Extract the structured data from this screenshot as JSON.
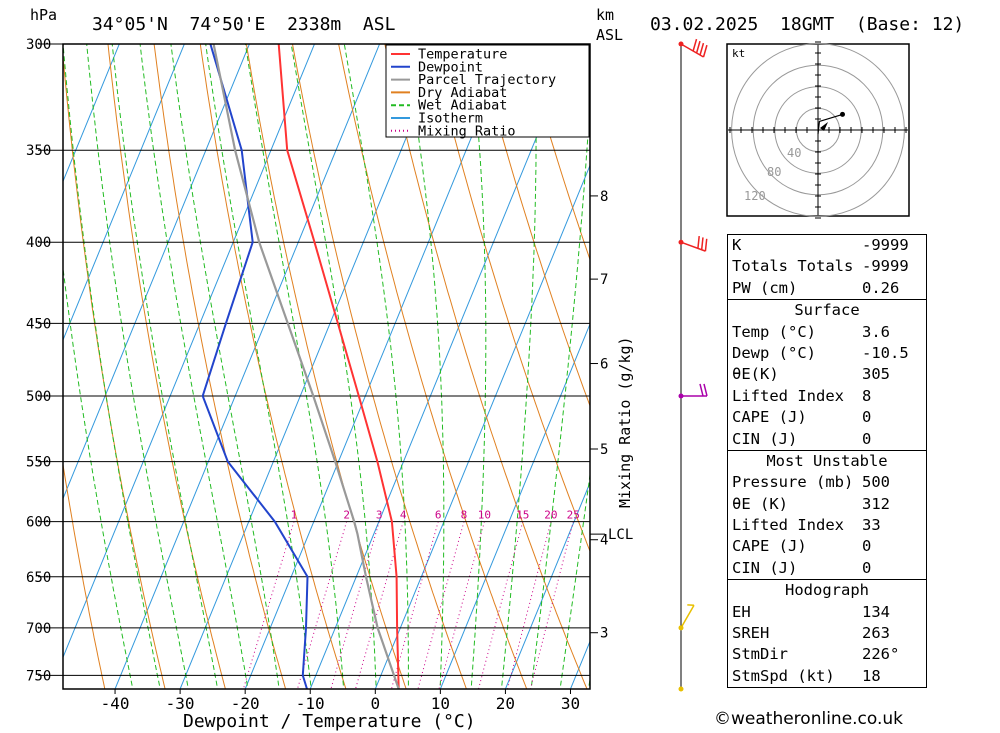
{
  "header": {
    "pressure_unit": "hPa",
    "location": "34°05'N  74°50'E  2338m  ASL",
    "height_unit_km": "km",
    "height_unit_asl": "ASL",
    "datetime": "03.02.2025  18GMT  (Base: 12)"
  },
  "footer": {
    "credit": "weatheronline.co.uk",
    "copyright_symbol": "©"
  },
  "colors": {
    "temperature": "#ff3333",
    "dewpoint": "#2244cc",
    "parcel": "#999999",
    "dry_adiabat": "#e08020",
    "wet_adiabat": "#22bb22",
    "isotherm": "#3399dd",
    "mixing_ratio": "#cc0088",
    "wind_top": "#ee2222",
    "wind_mid": "#aa00aa",
    "wind_low": "#e8c000"
  },
  "chart_data": {
    "type": "line",
    "title": "34°05'N  74°50'E  2338m  ASL",
    "xlabel": "Dewpoint / Temperature (°C)",
    "ylabel": "hPa",
    "y2label": "Mixing Ratio (g/kg)",
    "xlim": [
      -48,
      33
    ],
    "ylim": [
      765,
      300
    ],
    "yscale": "log",
    "skew_deg_per_decade": 100,
    "x_ticks": [
      -40,
      -30,
      -20,
      -10,
      0,
      10,
      20,
      30
    ],
    "x_tick_labels": [
      "-40",
      "-30",
      "-20",
      "-10",
      "0",
      "10",
      "20",
      "30"
    ],
    "pressure_levels": [
      300,
      350,
      400,
      450,
      500,
      550,
      600,
      650,
      700,
      750
    ],
    "pressure_labels": [
      "300",
      "350",
      "400",
      "450",
      "500",
      "550",
      "600",
      "650",
      "700",
      "750"
    ],
    "km_ticks": [
      {
        "label": "8",
        "p": 374
      },
      {
        "label": "7",
        "p": 422
      },
      {
        "label": "6",
        "p": 477
      },
      {
        "label": "5",
        "p": 540
      },
      {
        "label": "4",
        "p": 616
      },
      {
        "label": "3",
        "p": 705
      }
    ],
    "lcl": {
      "label": "LCL",
      "p": 611
    },
    "mixing_ratios": [
      1,
      2,
      3,
      4,
      6,
      8,
      10,
      15,
      20,
      25
    ],
    "mixing_ratio_labels": [
      "1",
      "2",
      "3",
      "4",
      "6",
      "8",
      "10",
      "15",
      "20",
      "25"
    ],
    "grid": true,
    "legend_position": "top-right",
    "legend": [
      "Temperature",
      "Dewpoint",
      "Parcel Trajectory",
      "Dry Adiabat",
      "Wet Adiabat",
      "Isotherm",
      "Mixing Ratio"
    ],
    "series": [
      {
        "name": "Temperature",
        "p": [
          765,
          700,
          650,
          600,
          550,
          500,
          450,
          400,
          350,
          300
        ],
        "t": [
          3.6,
          -0.5,
          -3.8,
          -8.0,
          -14.0,
          -21.0,
          -28.8,
          -37.5,
          -47.5,
          -55.5
        ]
      },
      {
        "name": "Dewpoint",
        "p": [
          765,
          750,
          700,
          650,
          600,
          550,
          500,
          450,
          400,
          350,
          300
        ],
        "t": [
          -10.5,
          -12,
          -14.5,
          -17.5,
          -26.0,
          -37.0,
          -45.0,
          -46.0,
          -47.0,
          -54.5,
          -66.0
        ]
      },
      {
        "name": "Parcel Trajectory",
        "p": [
          765,
          700,
          650,
          611,
          600,
          550,
          500,
          450,
          400,
          350,
          300
        ],
        "t": [
          3.6,
          -3.5,
          -8.5,
          -12.5,
          -13.8,
          -20.5,
          -28.0,
          -36.5,
          -46.0,
          -55.5,
          -65.5
        ]
      }
    ]
  },
  "winds": [
    {
      "p": 300,
      "dir": 240,
      "kt": 40,
      "color": "#ee2222"
    },
    {
      "p": 400,
      "dir": 250,
      "kt": 30,
      "color": "#ee2222"
    },
    {
      "p": 500,
      "dir": 270,
      "kt": 20,
      "color": "#aa00aa"
    },
    {
      "p": 700,
      "dir": 330,
      "kt": 5,
      "color": "#e8c000"
    },
    {
      "p": 765,
      "dir": 0,
      "kt": 0,
      "color": "#e8c000"
    }
  ],
  "hodograph": {
    "unit": "kt",
    "ring_labels": [
      "40",
      "80",
      "120"
    ],
    "points": [
      [
        0,
        0
      ],
      [
        0.5,
        5
      ],
      [
        2,
        18
      ],
      [
        35,
        28
      ]
    ]
  },
  "stats": {
    "indices": [
      {
        "label": "K",
        "value": "-9999"
      },
      {
        "label": "Totals Totals",
        "value": "-9999"
      },
      {
        "label": "PW (cm)",
        "value": "0.26"
      }
    ],
    "surface": {
      "title": "Surface",
      "rows": [
        {
          "label": "Temp (°C)",
          "value": "3.6"
        },
        {
          "label": "Dewp (°C)",
          "value": "-10.5"
        },
        {
          "label": "θE(K)",
          "value": "305"
        },
        {
          "label": "Lifted Index",
          "value": "8"
        },
        {
          "label": "CAPE (J)",
          "value": "0"
        },
        {
          "label": "CIN (J)",
          "value": "0"
        }
      ]
    },
    "most_unstable": {
      "title": "Most Unstable",
      "rows": [
        {
          "label": "Pressure (mb)",
          "value": "500"
        },
        {
          "label": "θE (K)",
          "value": "312"
        },
        {
          "label": "Lifted Index",
          "value": "33"
        },
        {
          "label": "CAPE (J)",
          "value": "0"
        },
        {
          "label": "CIN (J)",
          "value": "0"
        }
      ]
    },
    "hodograph": {
      "title": "Hodograph",
      "rows": [
        {
          "label": "EH",
          "value": "134"
        },
        {
          "label": "SREH",
          "value": "263"
        },
        {
          "label": "StmDir",
          "value": "226°"
        },
        {
          "label": "StmSpd (kt)",
          "value": "18"
        }
      ]
    }
  }
}
